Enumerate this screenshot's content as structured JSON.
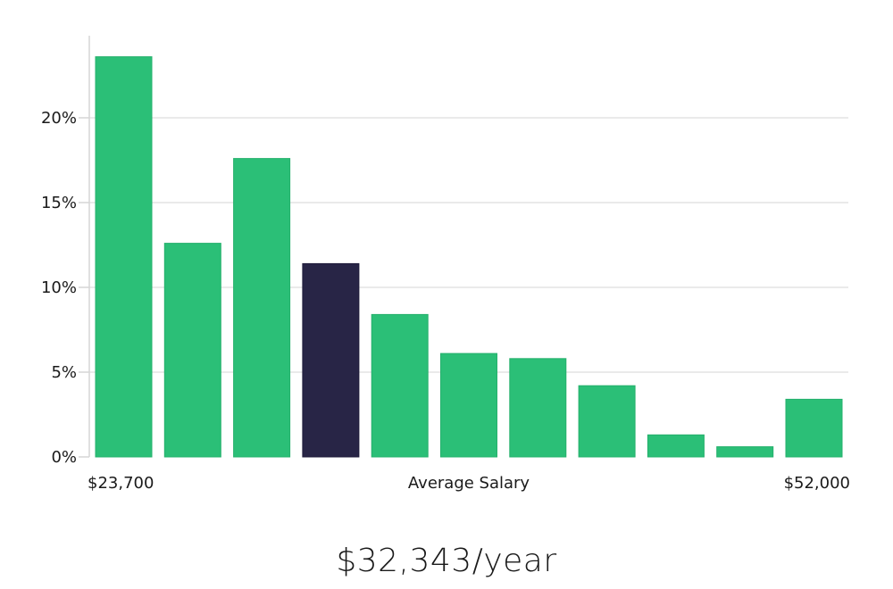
{
  "chart_data": {
    "type": "bar",
    "values": [
      23.6,
      12.6,
      17.6,
      11.4,
      8.4,
      6.1,
      5.8,
      4.2,
      1.3,
      0.6,
      3.4
    ],
    "highlight_index": 3,
    "ylim": [
      0,
      25
    ],
    "yticks": [
      0,
      5,
      10,
      15,
      20
    ],
    "ytick_labels": [
      "0%",
      "5%",
      "10%",
      "15%",
      "20%"
    ],
    "x_start_label": "$23,700",
    "x_center_label": "Average Salary",
    "x_end_label": "$52,000",
    "grid": true,
    "colors": {
      "bar": "#2bbf77",
      "bar_highlight": "#282546",
      "grid": "#e3e3e3",
      "axis": "#d6d6d6"
    }
  },
  "salary_figure": "$32,343/year"
}
